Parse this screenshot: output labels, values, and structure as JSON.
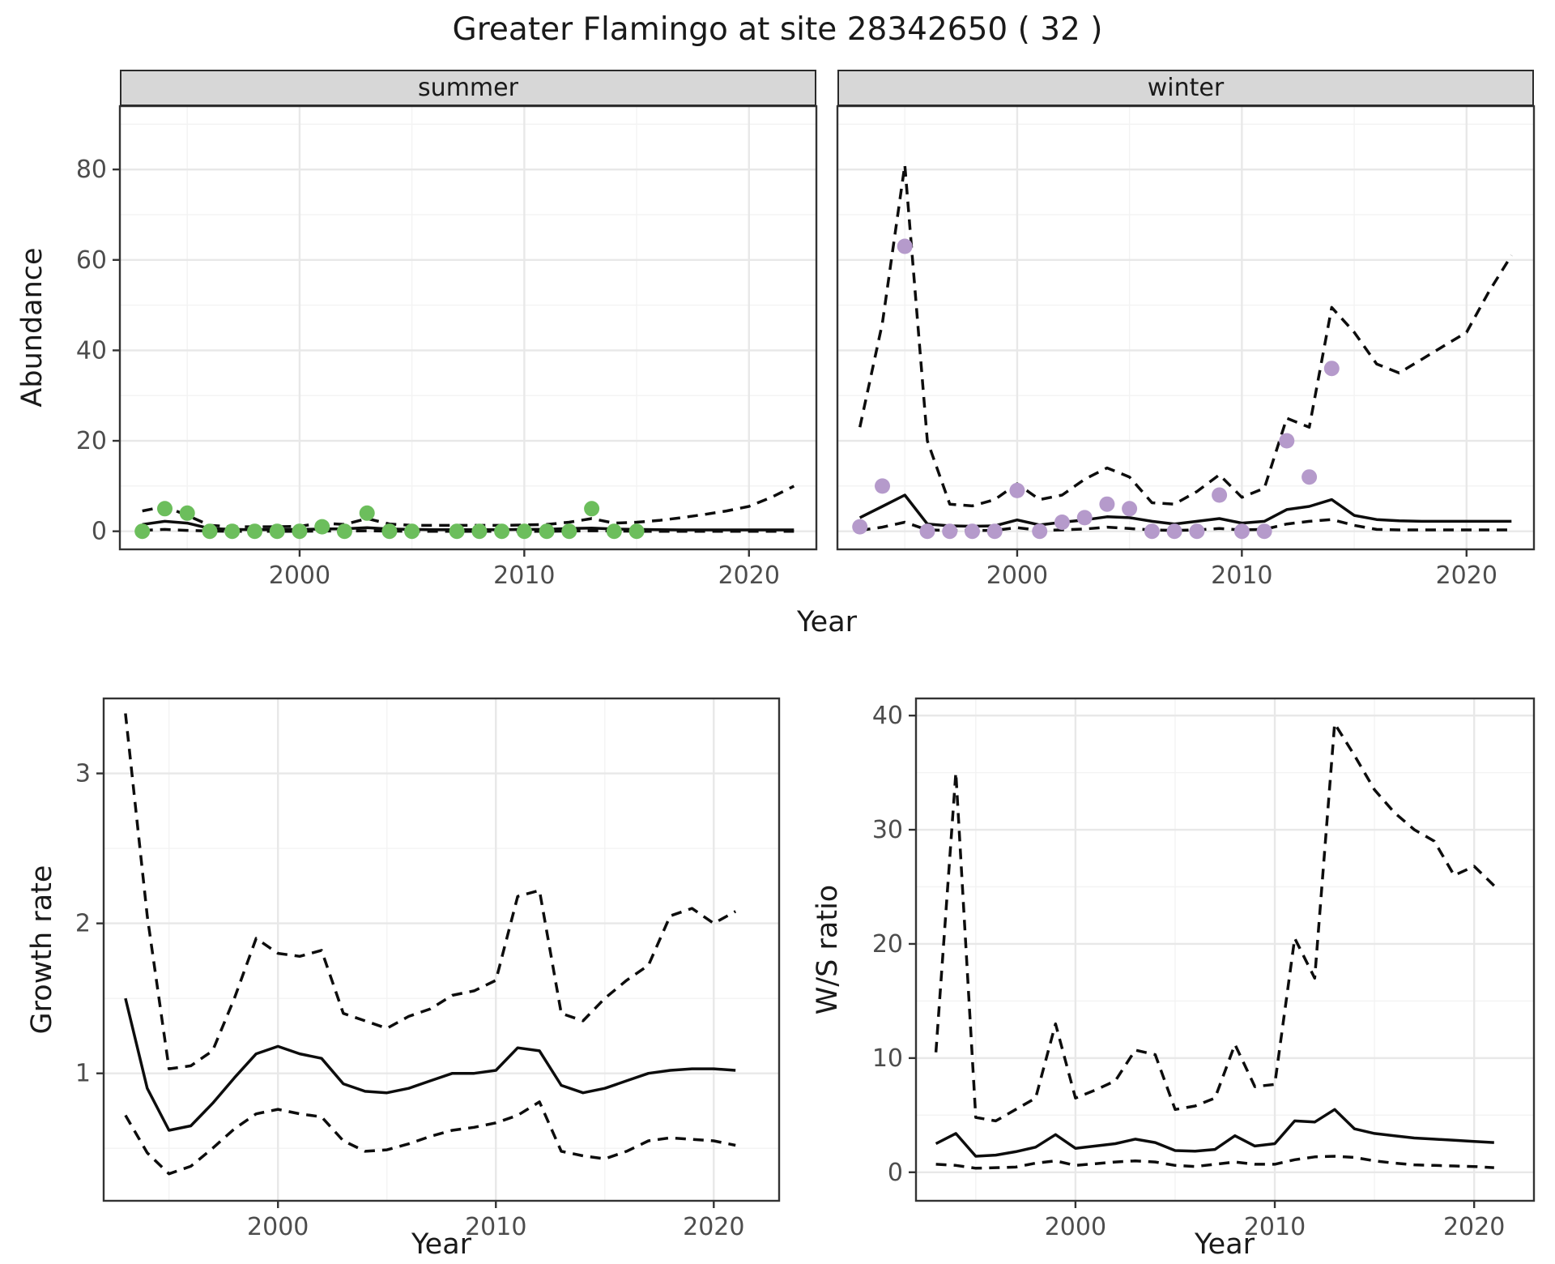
{
  "title": "Greater Flamingo at site 28342650 ( 32 )",
  "facets": [
    {
      "label": "summer"
    },
    {
      "label": "winter"
    }
  ],
  "axis_titles": {
    "abundance": "Abundance",
    "year": "Year",
    "growth_rate": "Growth rate",
    "ws_ratio": "W/S ratio"
  },
  "colors": {
    "summer_points": "#6cbe5c",
    "winter_points": "#b59acb",
    "line": "#0d0d0d",
    "grid_major": "#e8e8e8",
    "grid_minor": "#f3f3f3",
    "panel_border": "#333333",
    "strip_bg": "#d7d7d7",
    "tick_text": "#4d4d4d"
  },
  "chart_data": [
    {
      "type": "line+scatter",
      "facet": "summer",
      "xlabel": "Year",
      "ylabel": "Abundance",
      "xlim": [
        1992,
        2023
      ],
      "ylim": [
        -4,
        94
      ],
      "xticks": [
        2000,
        2010,
        2020
      ],
      "xminor": [
        1995,
        2005,
        2015
      ],
      "yticks": [
        0,
        20,
        40,
        60,
        80
      ],
      "yminor": [
        10,
        30,
        50,
        70,
        90
      ],
      "points": {
        "x": [
          1993,
          1994,
          1995,
          1996,
          1997,
          1998,
          1999,
          2000,
          2001,
          2002,
          2003,
          2004,
          2005,
          2007,
          2008,
          2009,
          2010,
          2011,
          2012,
          2013,
          2014,
          2015
        ],
        "y": [
          0,
          5,
          4,
          0,
          0,
          0,
          0,
          0,
          1,
          0,
          4,
          0,
          0,
          0,
          0,
          0,
          0,
          0,
          0,
          5,
          0,
          0
        ],
        "color_key": "summer_points"
      },
      "series": [
        {
          "name": "fit",
          "style": "solid",
          "x": [
            1993,
            1994,
            1995,
            1996,
            1997,
            1998,
            1999,
            2000,
            2001,
            2002,
            2003,
            2004,
            2005,
            2006,
            2007,
            2008,
            2009,
            2010,
            2011,
            2012,
            2013,
            2014,
            2015,
            2016,
            2017,
            2018,
            2019,
            2020,
            2021,
            2022
          ],
          "y": [
            1.5,
            2.2,
            1.8,
            0.6,
            0.4,
            0.35,
            0.35,
            0.4,
            0.5,
            0.55,
            0.8,
            0.5,
            0.4,
            0.35,
            0.35,
            0.35,
            0.35,
            0.4,
            0.45,
            0.6,
            0.7,
            0.5,
            0.4,
            0.35,
            0.3,
            0.3,
            0.3,
            0.3,
            0.3,
            0.3
          ]
        },
        {
          "name": "upper_ci",
          "style": "dashed",
          "x": [
            1993,
            1994,
            1995,
            1996,
            1997,
            1998,
            1999,
            2000,
            2001,
            2002,
            2003,
            2004,
            2005,
            2006,
            2007,
            2008,
            2009,
            2010,
            2011,
            2012,
            2013,
            2014,
            2015,
            2016,
            2017,
            2018,
            2019,
            2020,
            2021,
            2022
          ],
          "y": [
            4.5,
            5.5,
            3.5,
            1.3,
            1.0,
            1.0,
            1.0,
            1.1,
            1.8,
            1.5,
            2.8,
            1.6,
            1.3,
            1.3,
            1.3,
            1.3,
            1.3,
            1.4,
            1.5,
            2.0,
            2.8,
            1.8,
            2.0,
            2.4,
            3.0,
            3.7,
            4.5,
            5.5,
            7.5,
            10.0
          ]
        },
        {
          "name": "lower_ci",
          "style": "dashed",
          "x": [
            1993,
            1994,
            1995,
            1996,
            1997,
            1998,
            1999,
            2000,
            2001,
            2002,
            2003,
            2004,
            2005,
            2006,
            2007,
            2008,
            2009,
            2010,
            2011,
            2012,
            2013,
            2014,
            2015,
            2016,
            2017,
            2018,
            2019,
            2020,
            2021,
            2022
          ],
          "y": [
            0.2,
            0.4,
            0.2,
            0.05,
            0,
            0,
            0,
            0,
            0.05,
            0.05,
            0.1,
            0.05,
            0,
            0,
            0,
            0,
            0,
            0,
            0,
            0.05,
            0.1,
            0.05,
            0,
            0,
            0,
            0,
            0,
            0,
            0,
            0
          ]
        }
      ]
    },
    {
      "type": "line+scatter",
      "facet": "winter",
      "xlabel": "Year",
      "ylabel": "Abundance",
      "xlim": [
        1992,
        2023
      ],
      "ylim": [
        -4,
        94
      ],
      "xticks": [
        2000,
        2010,
        2020
      ],
      "xminor": [
        1995,
        2005,
        2015
      ],
      "yticks": [
        0,
        20,
        40,
        60,
        80
      ],
      "yminor": [
        10,
        30,
        50,
        70,
        90
      ],
      "points": {
        "x": [
          1993,
          1994,
          1995,
          1996,
          1997,
          1998,
          1999,
          2000,
          2001,
          2002,
          2003,
          2004,
          2005,
          2006,
          2007,
          2008,
          2009,
          2010,
          2011,
          2012,
          2013,
          2014
        ],
        "y": [
          1,
          10,
          63,
          0,
          0,
          0,
          0,
          9,
          0,
          2,
          3,
          6,
          5,
          0,
          0,
          0,
          8,
          0,
          0,
          20,
          12,
          36
        ],
        "color_key": "winter_points"
      },
      "series": [
        {
          "name": "fit",
          "style": "solid",
          "x": [
            1993,
            1994,
            1995,
            1996,
            1997,
            1998,
            1999,
            2000,
            2001,
            2002,
            2003,
            2004,
            2005,
            2006,
            2007,
            2008,
            2009,
            2010,
            2011,
            2012,
            2013,
            2014,
            2015,
            2016,
            2017,
            2018,
            2019,
            2020,
            2021,
            2022
          ],
          "y": [
            3.0,
            5.5,
            8.0,
            1.6,
            1.2,
            1.1,
            1.2,
            2.5,
            1.4,
            2.0,
            2.5,
            3.2,
            3.0,
            2.2,
            1.6,
            2.2,
            2.8,
            1.8,
            2.2,
            4.8,
            5.5,
            7.0,
            3.5,
            2.6,
            2.3,
            2.2,
            2.2,
            2.2,
            2.2,
            2.2
          ]
        },
        {
          "name": "upper_ci",
          "style": "dashed",
          "x": [
            1993,
            1994,
            1995,
            1996,
            1997,
            1998,
            1999,
            2000,
            2001,
            2002,
            2003,
            2004,
            2005,
            2006,
            2007,
            2008,
            2009,
            2010,
            2011,
            2012,
            2013,
            2014,
            2015,
            2016,
            2017,
            2018,
            2019,
            2020,
            2021,
            2022
          ],
          "y": [
            23,
            46,
            81,
            20,
            6,
            5.6,
            7,
            10.5,
            7,
            8,
            11.5,
            14,
            12,
            6.3,
            6,
            8.8,
            12.5,
            7.5,
            9.5,
            25,
            23,
            49.5,
            44,
            37,
            35,
            38,
            41,
            44,
            53,
            61
          ]
        },
        {
          "name": "lower_ci",
          "style": "dashed",
          "x": [
            1993,
            1994,
            1995,
            1996,
            1997,
            1998,
            1999,
            2000,
            2001,
            2002,
            2003,
            2004,
            2005,
            2006,
            2007,
            2008,
            2009,
            2010,
            2011,
            2012,
            2013,
            2014,
            2015,
            2016,
            2017,
            2018,
            2019,
            2020,
            2021,
            2022
          ],
          "y": [
            0.2,
            0.9,
            2.0,
            0.3,
            0.2,
            0.2,
            0.2,
            0.8,
            0.2,
            0.3,
            0.5,
            0.9,
            0.6,
            0.3,
            0.2,
            0.3,
            0.6,
            0.3,
            0.4,
            1.6,
            2.2,
            2.6,
            1.3,
            0.4,
            0.3,
            0.3,
            0.3,
            0.3,
            0.3,
            0.3
          ]
        }
      ]
    },
    {
      "type": "line",
      "facet": null,
      "xlabel": "Year",
      "ylabel": "Growth rate",
      "xlim": [
        1992,
        2023
      ],
      "ylim": [
        0.15,
        3.5
      ],
      "xticks": [
        2000,
        2010,
        2020
      ],
      "xminor": [
        1995,
        2005,
        2015
      ],
      "yticks": [
        1,
        2,
        3
      ],
      "yminor": [
        0.5,
        1.5,
        2.5
      ],
      "points": null,
      "series": [
        {
          "name": "fit",
          "style": "solid",
          "x": [
            1993,
            1994,
            1995,
            1996,
            1997,
            1998,
            1999,
            2000,
            2001,
            2002,
            2003,
            2004,
            2005,
            2006,
            2007,
            2008,
            2009,
            2010,
            2011,
            2012,
            2013,
            2014,
            2015,
            2016,
            2017,
            2018,
            2019,
            2020,
            2021
          ],
          "y": [
            1.5,
            0.9,
            0.62,
            0.65,
            0.8,
            0.97,
            1.13,
            1.18,
            1.13,
            1.1,
            0.93,
            0.88,
            0.87,
            0.9,
            0.95,
            1.0,
            1.0,
            1.02,
            1.17,
            1.15,
            0.92,
            0.87,
            0.9,
            0.95,
            1.0,
            1.02,
            1.03,
            1.03,
            1.02
          ]
        },
        {
          "name": "upper_ci",
          "style": "dashed",
          "x": [
            1993,
            1994,
            1995,
            1996,
            1997,
            1998,
            1999,
            2000,
            2001,
            2002,
            2003,
            2004,
            2005,
            2006,
            2007,
            2008,
            2009,
            2010,
            2011,
            2012,
            2013,
            2014,
            2015,
            2016,
            2017,
            2018,
            2019,
            2020,
            2021
          ],
          "y": [
            3.4,
            2.05,
            1.03,
            1.05,
            1.15,
            1.5,
            1.9,
            1.8,
            1.78,
            1.82,
            1.4,
            1.35,
            1.3,
            1.38,
            1.43,
            1.52,
            1.55,
            1.62,
            2.18,
            2.22,
            1.4,
            1.35,
            1.5,
            1.62,
            1.72,
            2.05,
            2.1,
            2.0,
            2.08
          ]
        },
        {
          "name": "lower_ci",
          "style": "dashed",
          "x": [
            1993,
            1994,
            1995,
            1996,
            1997,
            1998,
            1999,
            2000,
            2001,
            2002,
            2003,
            2004,
            2005,
            2006,
            2007,
            2008,
            2009,
            2010,
            2011,
            2012,
            2013,
            2014,
            2015,
            2016,
            2017,
            2018,
            2019,
            2020,
            2021
          ],
          "y": [
            0.72,
            0.47,
            0.33,
            0.38,
            0.5,
            0.63,
            0.73,
            0.76,
            0.73,
            0.71,
            0.55,
            0.48,
            0.49,
            0.53,
            0.58,
            0.62,
            0.64,
            0.67,
            0.72,
            0.81,
            0.48,
            0.45,
            0.43,
            0.48,
            0.55,
            0.57,
            0.56,
            0.55,
            0.52
          ]
        }
      ]
    },
    {
      "type": "line",
      "facet": null,
      "xlabel": "Year",
      "ylabel": "W/S ratio",
      "xlim": [
        1992,
        2023
      ],
      "ylim": [
        -2.5,
        41.5
      ],
      "xticks": [
        2000,
        2010,
        2020
      ],
      "xminor": [
        1995,
        2005,
        2015
      ],
      "yticks": [
        0,
        10,
        20,
        30,
        40
      ],
      "yminor": [
        5,
        15,
        25,
        35
      ],
      "points": null,
      "series": [
        {
          "name": "fit",
          "style": "solid",
          "x": [
            1993,
            1994,
            1995,
            1996,
            1997,
            1998,
            1999,
            2000,
            2001,
            2002,
            2003,
            2004,
            2005,
            2006,
            2007,
            2008,
            2009,
            2010,
            2011,
            2012,
            2013,
            2014,
            2015,
            2016,
            2017,
            2018,
            2019,
            2020,
            2021
          ],
          "y": [
            2.5,
            3.4,
            1.4,
            1.5,
            1.8,
            2.2,
            3.3,
            2.1,
            2.3,
            2.5,
            2.9,
            2.6,
            1.9,
            1.85,
            2.0,
            3.2,
            2.3,
            2.5,
            4.5,
            4.4,
            5.5,
            3.8,
            3.4,
            3.2,
            3.0,
            2.9,
            2.8,
            2.7,
            2.6
          ]
        },
        {
          "name": "upper_ci",
          "style": "dashed",
          "x": [
            1993,
            1994,
            1995,
            1996,
            1997,
            1998,
            1999,
            2000,
            2001,
            2002,
            2003,
            2004,
            2005,
            2006,
            2007,
            2008,
            2009,
            2010,
            2011,
            2012,
            2013,
            2014,
            2015,
            2016,
            2017,
            2018,
            2019,
            2020,
            2021
          ],
          "y": [
            10.5,
            35,
            4.8,
            4.5,
            5.5,
            6.5,
            13,
            6.5,
            7.2,
            8.0,
            10.7,
            10.3,
            5.5,
            5.8,
            6.5,
            11.2,
            7.5,
            7.7,
            20.5,
            17,
            39.3,
            36.5,
            33.5,
            31.5,
            30,
            29,
            26,
            26.8,
            25.1
          ]
        },
        {
          "name": "lower_ci",
          "style": "dashed",
          "x": [
            1993,
            1994,
            1995,
            1996,
            1997,
            1998,
            1999,
            2000,
            2001,
            2002,
            2003,
            2004,
            2005,
            2006,
            2007,
            2008,
            2009,
            2010,
            2011,
            2012,
            2013,
            2014,
            2015,
            2016,
            2017,
            2018,
            2019,
            2020,
            2021
          ],
          "y": [
            0.7,
            0.6,
            0.35,
            0.4,
            0.45,
            0.8,
            1.0,
            0.6,
            0.75,
            0.9,
            1.0,
            0.9,
            0.6,
            0.5,
            0.7,
            0.9,
            0.7,
            0.7,
            1.1,
            1.35,
            1.4,
            1.3,
            1.0,
            0.8,
            0.65,
            0.6,
            0.55,
            0.5,
            0.4
          ]
        }
      ]
    }
  ]
}
